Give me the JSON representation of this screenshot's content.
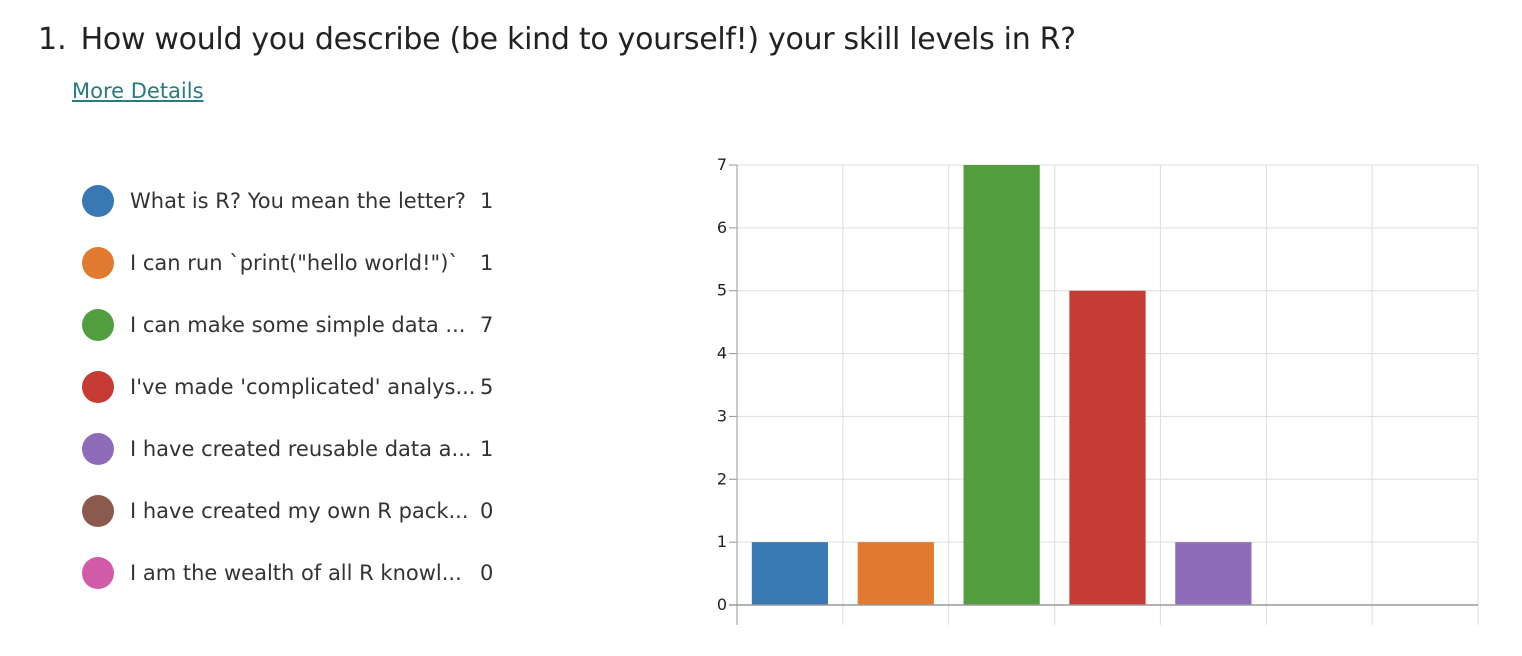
{
  "question": {
    "number": "1.",
    "title": "How would you describe (be kind to yourself!) your skill levels in R?",
    "more_details": "More Details"
  },
  "legend": [
    {
      "label": "What is R? You mean the letter?",
      "count": "1",
      "color": "#3a78b4"
    },
    {
      "label": "I can run `print(\"hello world!\")`",
      "count": "1",
      "color": "#e07a2e"
    },
    {
      "label": "I can make some simple data ...",
      "count": "7",
      "color": "#529e3f"
    },
    {
      "label": "I've made 'complicated' analys...",
      "count": "5",
      "color": "#c63b33"
    },
    {
      "label": "I have created reusable data a...",
      "count": "1",
      "color": "#8f6cba"
    },
    {
      "label": "I have created my own R pack...",
      "count": "0",
      "color": "#8a5a4f"
    },
    {
      "label": "I am the wealth of all R knowl...",
      "count": "0",
      "color": "#d15aa9"
    }
  ],
  "chart_data": {
    "type": "bar",
    "categories": [
      "What is R? You mean the letter?",
      "I can run `print(\"hello world!\")`",
      "I can make some simple data ...",
      "I've made 'complicated' analys...",
      "I have created reusable data a...",
      "I have created my own R pack...",
      "I am the wealth of all R knowl..."
    ],
    "values": [
      1,
      1,
      7,
      5,
      1,
      0,
      0
    ],
    "colors": [
      "#3a78b4",
      "#e07a2e",
      "#529e3f",
      "#c63b33",
      "#8f6cba",
      "#8a5a4f",
      "#d15aa9"
    ],
    "ylim": [
      0,
      7
    ],
    "yticks": [
      "0",
      "1",
      "2",
      "3",
      "4",
      "5",
      "6",
      "7"
    ],
    "grid": true,
    "legend_placement": "left"
  }
}
